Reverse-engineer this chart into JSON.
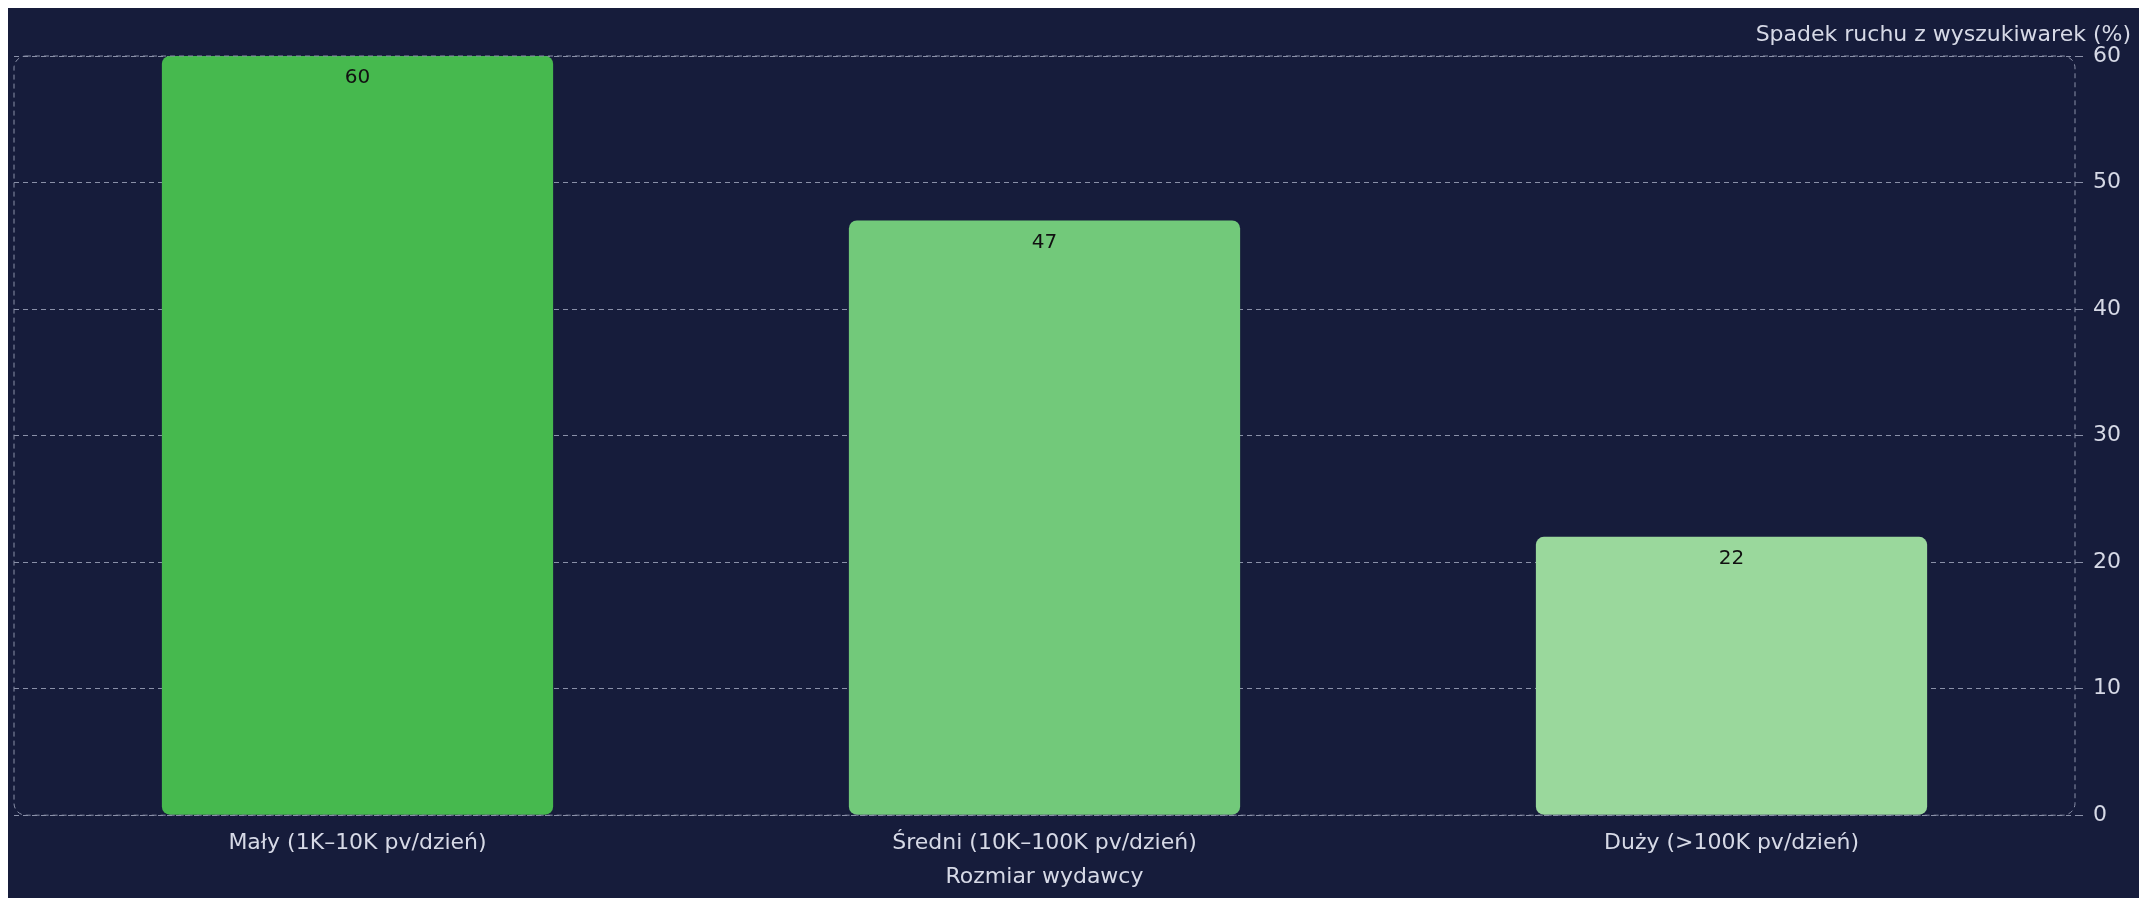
{
  "chart_data": {
    "type": "bar",
    "xlabel": "Rozmiar wydawcy",
    "ylabel": "Spadek ruchu z wyszukiwarek (%)",
    "categories": [
      "Mały (1K–10K pv/dzień)",
      "Średni (10K–100K pv/dzień)",
      "Duży (>100K pv/dzień)"
    ],
    "values": [
      60,
      47,
      22
    ],
    "colors": [
      "#46b94e",
      "#72c97a",
      "#9ad89c"
    ],
    "ylim": [
      0,
      60
    ],
    "yticks": [
      0,
      10,
      20,
      30,
      40,
      50,
      60
    ],
    "grid": "y",
    "legend": false,
    "data_labels": true
  }
}
